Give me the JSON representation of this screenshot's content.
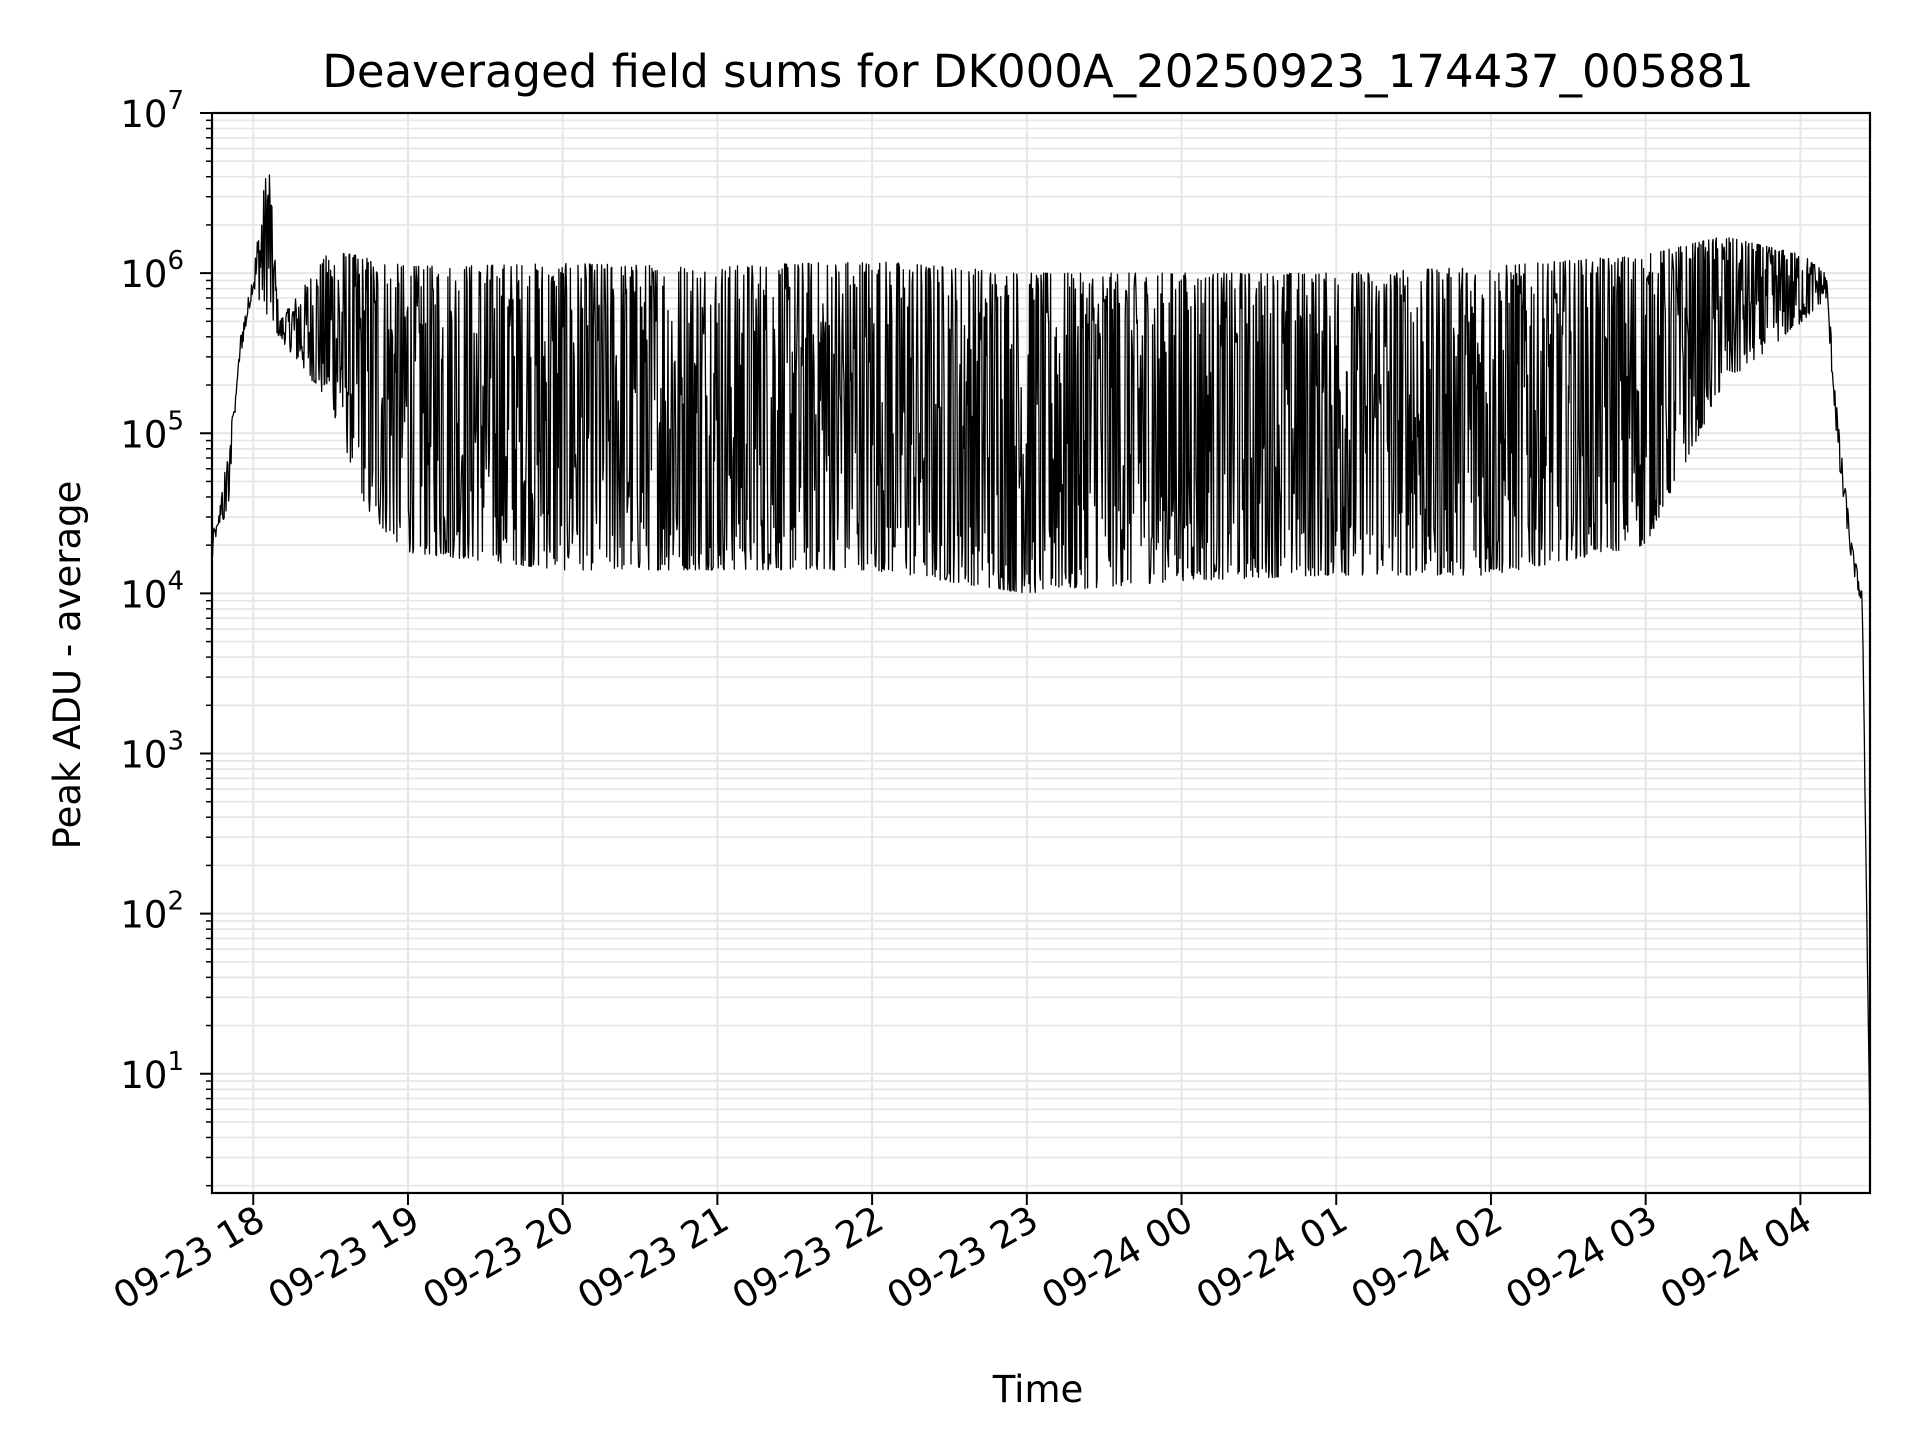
{
  "chart_data": {
    "type": "line",
    "title": "Deaveraged field sums for DK000A_20250923_174437_005881",
    "xlabel": "Time",
    "ylabel": "Peak ADU - average",
    "yscale": "log",
    "ylim": [
      1.8,
      10000000
    ],
    "xlim": [
      "2025-09-23 17:44",
      "2025-09-24 04:27"
    ],
    "grid": "both major and minor, light gray",
    "line_color": "#000000",
    "x_ticks": [
      {
        "t": "2025-09-23 18:00",
        "label": "09-23 18"
      },
      {
        "t": "2025-09-23 19:00",
        "label": "09-23 19"
      },
      {
        "t": "2025-09-23 20:00",
        "label": "09-23 20"
      },
      {
        "t": "2025-09-23 21:00",
        "label": "09-23 21"
      },
      {
        "t": "2025-09-23 22:00",
        "label": "09-23 22"
      },
      {
        "t": "2025-09-23 23:00",
        "label": "09-23 23"
      },
      {
        "t": "2025-09-24 00:00",
        "label": "09-24 00"
      },
      {
        "t": "2025-09-24 01:00",
        "label": "09-24 01"
      },
      {
        "t": "2025-09-24 02:00",
        "label": "09-24 02"
      },
      {
        "t": "2025-09-24 03:00",
        "label": "09-24 03"
      },
      {
        "t": "2025-09-24 04:00",
        "label": "09-24 04"
      }
    ],
    "y_ticks": [
      {
        "v": 10,
        "base": "10",
        "exp": "1"
      },
      {
        "v": 100,
        "base": "10",
        "exp": "2"
      },
      {
        "v": 1000,
        "base": "10",
        "exp": "3"
      },
      {
        "v": 10000,
        "base": "10",
        "exp": "4"
      },
      {
        "v": 100000,
        "base": "10",
        "exp": "5"
      },
      {
        "v": 1000000,
        "base": "10",
        "exp": "6"
      },
      {
        "v": 10000000,
        "base": "10",
        "exp": "7"
      }
    ],
    "envelope": {
      "description_free_values": true,
      "upper": [
        {
          "t": "2025-09-23 17:44",
          "y": 25000
        },
        {
          "t": "2025-09-23 17:50",
          "y": 30000
        },
        {
          "t": "2025-09-23 17:55",
          "y": 400000
        },
        {
          "t": "2025-09-23 18:00",
          "y": 1000000
        },
        {
          "t": "2025-09-23 18:03",
          "y": 2500000
        },
        {
          "t": "2025-09-23 18:06",
          "y": 5500000
        },
        {
          "t": "2025-09-23 18:10",
          "y": 500000
        },
        {
          "t": "2025-09-23 18:30",
          "y": 1400000
        },
        {
          "t": "2025-09-23 19:00",
          "y": 1100000
        },
        {
          "t": "2025-09-23 20:00",
          "y": 1150000
        },
        {
          "t": "2025-09-23 21:00",
          "y": 1100000
        },
        {
          "t": "2025-09-23 22:00",
          "y": 1200000
        },
        {
          "t": "2025-09-23 23:00",
          "y": 1000000
        },
        {
          "t": "2025-09-24 00:00",
          "y": 1000000
        },
        {
          "t": "2025-09-24 01:00",
          "y": 1000000
        },
        {
          "t": "2025-09-24 02:00",
          "y": 1100000
        },
        {
          "t": "2025-09-24 03:00",
          "y": 1300000
        },
        {
          "t": "2025-09-24 03:30",
          "y": 1700000
        },
        {
          "t": "2025-09-24 04:01",
          "y": 1300000
        },
        {
          "t": "2025-09-24 04:10",
          "y": 1000000
        },
        {
          "t": "2025-09-24 04:15",
          "y": 100000
        },
        {
          "t": "2025-09-24 04:20",
          "y": 20000
        },
        {
          "t": "2025-09-24 04:24",
          "y": 10000
        },
        {
          "t": "2025-09-24 04:27",
          "y": 4
        }
      ],
      "lower": [
        {
          "t": "2025-09-23 17:44",
          "y": 15000
        },
        {
          "t": "2025-09-23 17:55",
          "y": 300000
        },
        {
          "t": "2025-09-23 18:00",
          "y": 800000
        },
        {
          "t": "2025-09-23 18:10",
          "y": 400000
        },
        {
          "t": "2025-09-23 18:30",
          "y": 150000
        },
        {
          "t": "2025-09-23 18:45",
          "y": 30000
        },
        {
          "t": "2025-09-23 19:00",
          "y": 18000
        },
        {
          "t": "2025-09-23 20:00",
          "y": 14000
        },
        {
          "t": "2025-09-23 21:00",
          "y": 14000
        },
        {
          "t": "2025-09-23 22:00",
          "y": 14000
        },
        {
          "t": "2025-09-23 23:00",
          "y": 10000
        },
        {
          "t": "2025-09-24 00:00",
          "y": 12000
        },
        {
          "t": "2025-09-24 01:00",
          "y": 13000
        },
        {
          "t": "2025-09-24 02:00",
          "y": 13000
        },
        {
          "t": "2025-09-24 03:00",
          "y": 20000
        },
        {
          "t": "2025-09-24 03:30",
          "y": 200000
        },
        {
          "t": "2025-09-24 04:01",
          "y": 500000
        },
        {
          "t": "2025-09-24 04:10",
          "y": 700000
        },
        {
          "t": "2025-09-24 04:15",
          "y": 60000
        },
        {
          "t": "2025-09-24 04:20",
          "y": 15000
        },
        {
          "t": "2025-09-24 04:24",
          "y": 8000
        },
        {
          "t": "2025-09-24 04:27",
          "y": 4
        }
      ]
    }
  }
}
